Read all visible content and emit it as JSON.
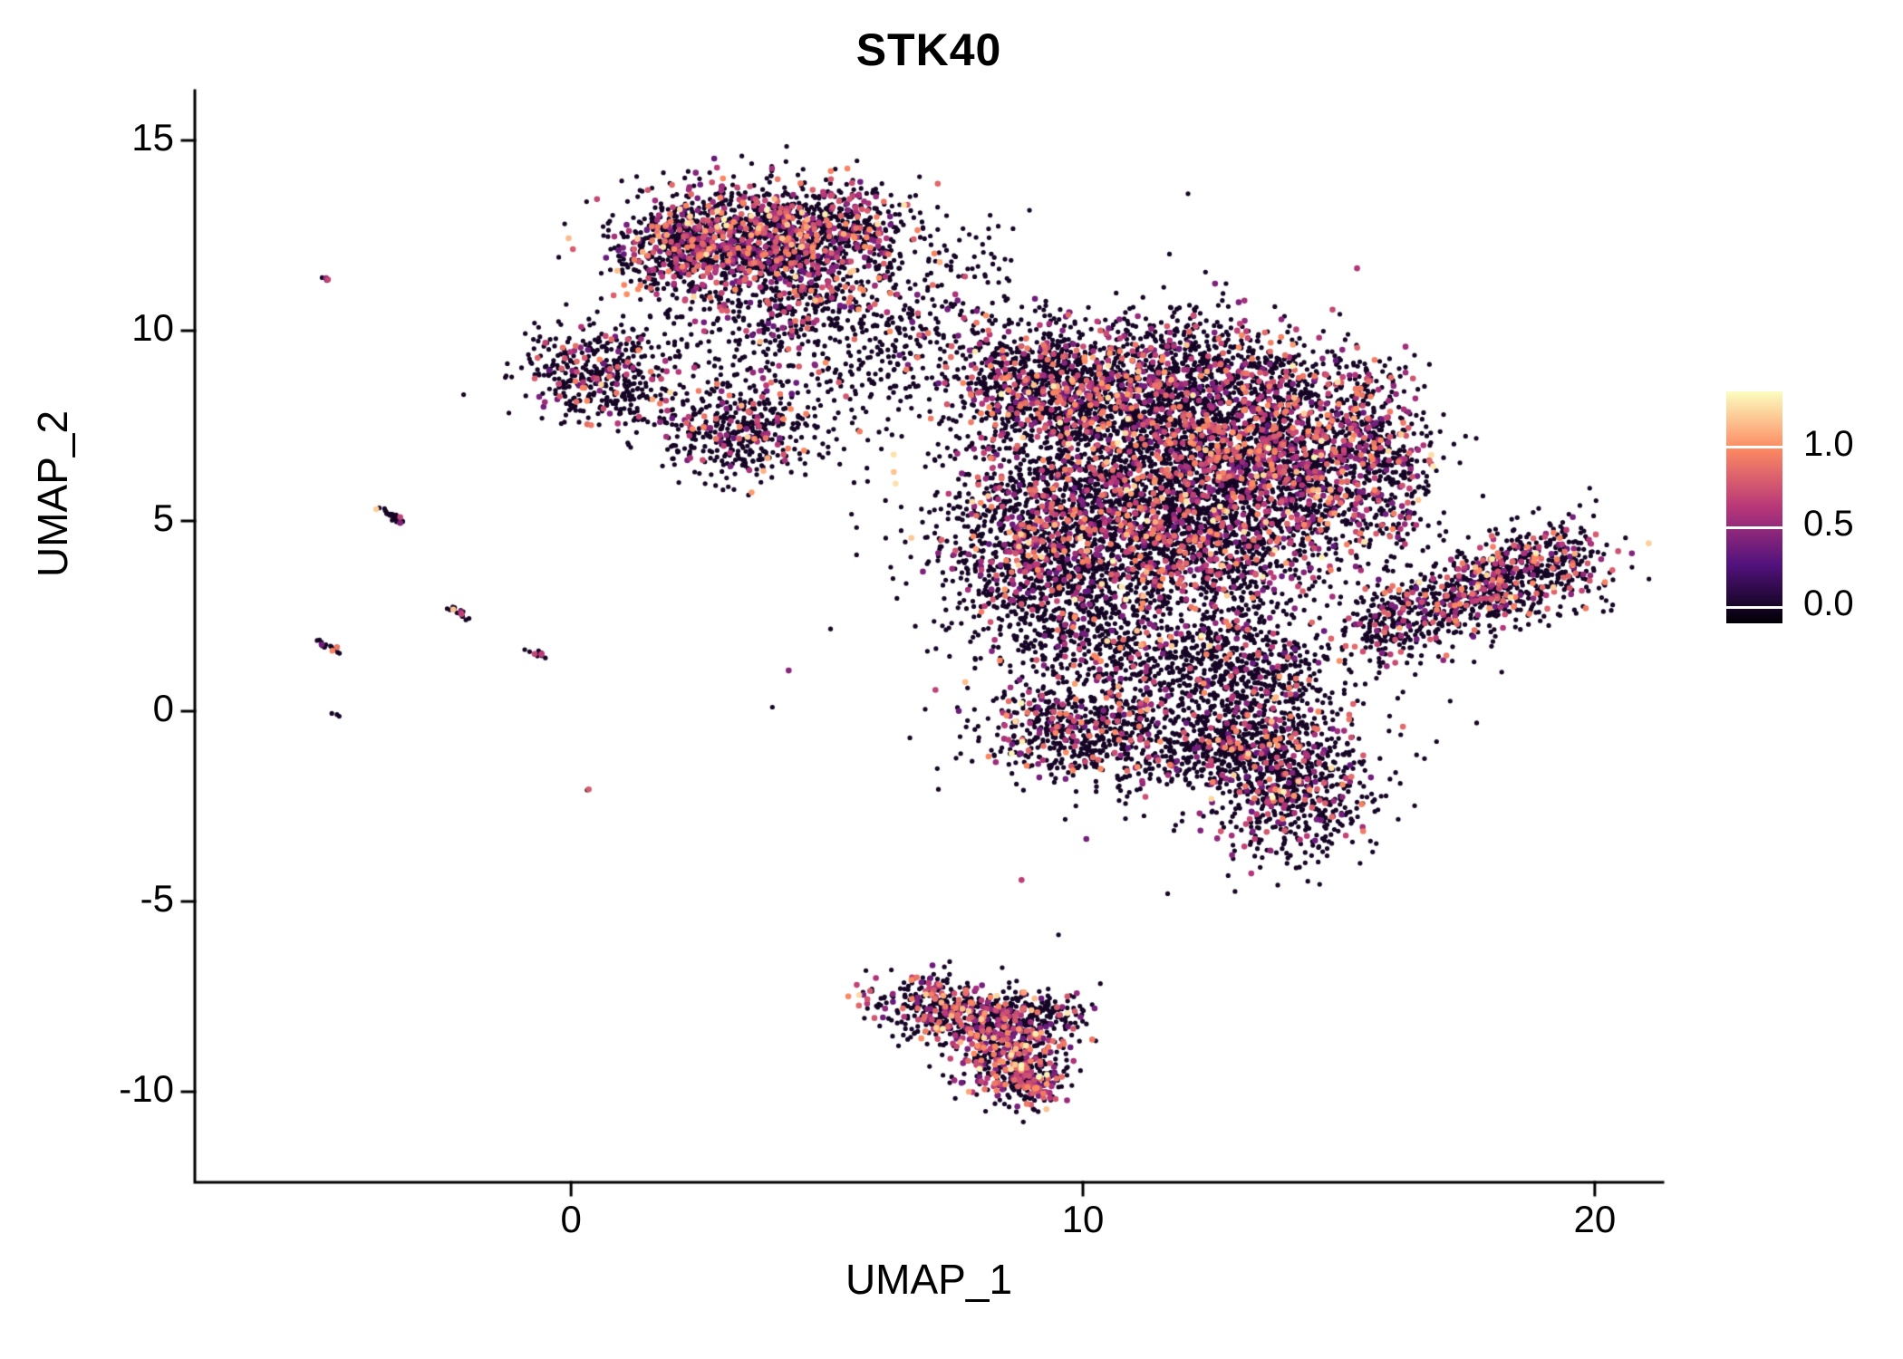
{
  "chart_data": {
    "type": "scatter",
    "title": "STK40",
    "xlabel": "UMAP_1",
    "ylabel": "UMAP_2",
    "xlim": [
      -7.35,
      21.33
    ],
    "ylim": [
      -12.38,
      16.31
    ],
    "x_ticks": [
      0,
      10,
      20
    ],
    "y_ticks": [
      -10,
      -5,
      0,
      5,
      10,
      15
    ],
    "grid": false,
    "legend_position": "right",
    "color_scale": {
      "name": "magma",
      "domain": [
        -0.1,
        1.35
      ],
      "ticks": [
        0.0,
        0.5,
        1.0
      ],
      "tick_labels": [
        "0.0",
        "0.5",
        "1.0"
      ],
      "stops": [
        {
          "pos": 0.0,
          "color": "#000004"
        },
        {
          "pos": 0.25,
          "color": "#51127c"
        },
        {
          "pos": 0.5,
          "color": "#b73779"
        },
        {
          "pos": 0.75,
          "color": "#fc8961"
        },
        {
          "pos": 1.0,
          "color": "#fcfdbf"
        }
      ]
    },
    "clusters": [
      {
        "n": 1350,
        "cx": 3.6,
        "cy": 12.4,
        "sx": 1.25,
        "sy": 0.72,
        "fexpr": 0.32
      },
      {
        "n": 260,
        "cx": 2.0,
        "cy": 12.1,
        "sx": 0.55,
        "sy": 0.55,
        "fexpr": 0.28
      },
      {
        "n": 240,
        "cx": 5.2,
        "cy": 12.9,
        "sx": 0.75,
        "sy": 0.5,
        "fexpr": 0.25
      },
      {
        "n": 300,
        "cx": 4.3,
        "cy": 10.7,
        "sx": 0.9,
        "sy": 0.75,
        "fexpr": 0.18
      },
      {
        "n": 120,
        "cx": 5.8,
        "cy": 11.6,
        "sx": 0.85,
        "sy": 0.85,
        "fexpr": 0.15
      },
      {
        "n": 40,
        "cx": 7.8,
        "cy": 11.7,
        "sx": 0.7,
        "sy": 0.7,
        "fexpr": 0.1
      },
      {
        "n": 60,
        "cx": 1.8,
        "cy": 9.9,
        "sx": 0.8,
        "sy": 0.6,
        "fexpr": 0.12
      },
      {
        "n": 380,
        "cx": 0.45,
        "cy": 8.9,
        "sx": 0.72,
        "sy": 0.62,
        "fexpr": 0.18
      },
      {
        "n": 60,
        "cx": 1.4,
        "cy": 7.9,
        "sx": 0.5,
        "sy": 0.4,
        "fexpr": 0.15
      },
      {
        "n": 430,
        "cx": 3.4,
        "cy": 7.4,
        "sx": 0.75,
        "sy": 0.68,
        "fexpr": 0.18
      },
      {
        "n": 150,
        "cx": 7.0,
        "cy": 10.3,
        "sx": 1.1,
        "sy": 0.8,
        "fexpr": 0.12
      },
      {
        "n": 80,
        "cx": 5.9,
        "cy": 9.0,
        "sx": 0.8,
        "sy": 0.6,
        "fexpr": 0.1
      },
      {
        "n": 900,
        "cx": 9.3,
        "cy": 8.6,
        "sx": 1.0,
        "sy": 0.85,
        "fexpr": 0.22
      },
      {
        "n": 1100,
        "cx": 11.4,
        "cy": 7.9,
        "sx": 1.3,
        "sy": 1.0,
        "fexpr": 0.22
      },
      {
        "n": 1000,
        "cx": 13.0,
        "cy": 6.8,
        "sx": 1.0,
        "sy": 1.2,
        "fexpr": 0.25
      },
      {
        "n": 1300,
        "cx": 10.6,
        "cy": 5.4,
        "sx": 1.4,
        "sy": 1.1,
        "fexpr": 0.25
      },
      {
        "n": 900,
        "cx": 12.4,
        "cy": 4.3,
        "sx": 1.2,
        "sy": 1.0,
        "fexpr": 0.2
      },
      {
        "n": 500,
        "cx": 8.9,
        "cy": 4.4,
        "sx": 0.8,
        "sy": 1.0,
        "fexpr": 0.25
      },
      {
        "n": 420,
        "cx": 9.8,
        "cy": 2.6,
        "sx": 0.9,
        "sy": 0.9,
        "fexpr": 0.2
      },
      {
        "n": 350,
        "cx": 11.3,
        "cy": 1.6,
        "sx": 1.2,
        "sy": 0.8,
        "fexpr": 0.12
      },
      {
        "n": 450,
        "cx": 13.3,
        "cy": 0.9,
        "sx": 0.9,
        "sy": 0.8,
        "fexpr": 0.15
      },
      {
        "n": 560,
        "cx": 9.9,
        "cy": -0.4,
        "sx": 1.0,
        "sy": 0.7,
        "fexpr": 0.2
      },
      {
        "n": 300,
        "cx": 12.0,
        "cy": -0.9,
        "sx": 1.2,
        "sy": 0.6,
        "fexpr": 0.15
      },
      {
        "n": 450,
        "cx": 14.4,
        "cy": 6.3,
        "sx": 0.7,
        "sy": 1.1,
        "fexpr": 0.3
      },
      {
        "n": 350,
        "cx": 15.3,
        "cy": 7.5,
        "sx": 0.6,
        "sy": 0.9,
        "fexpr": 0.3
      },
      {
        "n": 300,
        "cx": 15.9,
        "cy": 6.0,
        "sx": 0.55,
        "sy": 1.1,
        "fexpr": 0.28
      },
      {
        "n": 200,
        "cx": 12.2,
        "cy": 9.5,
        "sx": 0.9,
        "sy": 0.55,
        "fexpr": 0.2
      },
      {
        "n": 150,
        "cx": 13.8,
        "cy": 8.9,
        "sx": 0.7,
        "sy": 0.5,
        "fexpr": 0.25
      },
      {
        "n": 430,
        "cx": 11.0,
        "cy": 4.5,
        "sx": 2.8,
        "sy": 3.2,
        "fexpr": 0.1
      },
      {
        "n": 150,
        "cx": 13.4,
        "cy": -0.6,
        "sx": 1.4,
        "sy": 1.2,
        "fexpr": 0.1
      },
      {
        "n": 100,
        "cx": 4.6,
        "cy": 9.6,
        "sx": 1.4,
        "sy": 1.2,
        "fexpr": 0.1
      },
      {
        "n": 720,
        "cx": 17.8,
        "cy": 3.2,
        "sx": 1.15,
        "sy": 0.52,
        "rot": 28,
        "fexpr": 0.25
      },
      {
        "n": 140,
        "cx": 19.2,
        "cy": 3.9,
        "sx": 0.5,
        "sy": 0.7,
        "fexpr": 0.25
      },
      {
        "n": 160,
        "cx": 15.9,
        "cy": 2.3,
        "sx": 0.5,
        "sy": 0.5,
        "fexpr": 0.2
      },
      {
        "n": 640,
        "cx": 14.1,
        "cy": -2.0,
        "sx": 0.72,
        "sy": 0.9,
        "fexpr": 0.2
      },
      {
        "n": 200,
        "cx": 13.2,
        "cy": -0.9,
        "sx": 0.6,
        "sy": 0.5,
        "fexpr": 0.15
      },
      {
        "n": 500,
        "cx": 7.5,
        "cy": -7.9,
        "sx": 0.8,
        "sy": 0.45,
        "rot": -20,
        "fexpr": 0.32
      },
      {
        "n": 380,
        "cx": 8.6,
        "cy": -8.9,
        "sx": 0.55,
        "sy": 0.6,
        "rot": -30,
        "fexpr": 0.42
      },
      {
        "n": 180,
        "cx": 8.9,
        "cy": -9.7,
        "sx": 0.35,
        "sy": 0.4,
        "fexpr": 0.5
      },
      {
        "n": 120,
        "cx": 9.2,
        "cy": -7.9,
        "sx": 0.45,
        "sy": 0.3,
        "fexpr": 0.15
      }
    ],
    "streaks": [
      {
        "n": 26,
        "x1": -3.75,
        "y1": 5.35,
        "x2": -3.25,
        "y2": 4.9,
        "jitter": 0.04,
        "fexpr": 0.08
      },
      {
        "n": 18,
        "x1": -2.35,
        "y1": 2.75,
        "x2": -2.0,
        "y2": 2.4,
        "jitter": 0.04,
        "fexpr": 0.15
      },
      {
        "n": 16,
        "x1": -4.95,
        "y1": 1.85,
        "x2": -4.55,
        "y2": 1.5,
        "jitter": 0.04,
        "fexpr": 0.35
      },
      {
        "n": 15,
        "x1": -0.95,
        "y1": 1.62,
        "x2": -0.45,
        "y2": 1.4,
        "jitter": 0.04,
        "fexpr": 0.25
      },
      {
        "n": 4,
        "x1": -4.85,
        "y1": 11.45,
        "x2": -4.75,
        "y2": 11.35,
        "jitter": 0.03,
        "fexpr": 0.7
      },
      {
        "n": 3,
        "x1": -4.65,
        "y1": -0.05,
        "x2": -4.55,
        "y2": -0.12,
        "jitter": 0.03,
        "fexpr": 0.6
      },
      {
        "n": 2,
        "x1": 0.3,
        "y1": -2.05,
        "x2": 0.38,
        "y2": -2.12,
        "jitter": 0.02,
        "fexpr": 0.6
      }
    ]
  }
}
